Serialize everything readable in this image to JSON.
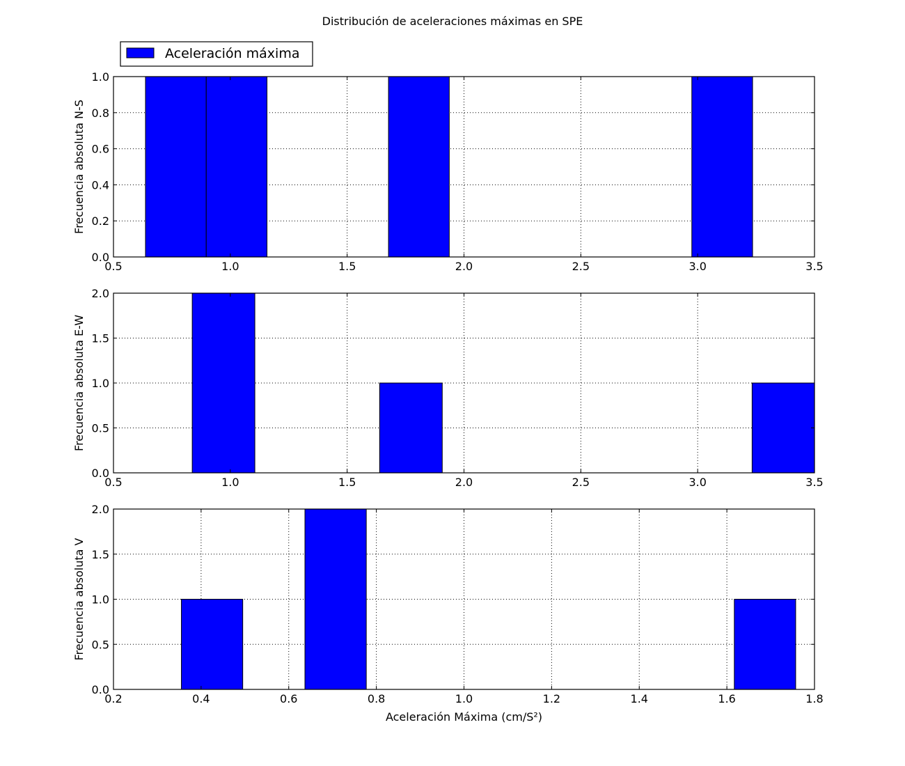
{
  "chart_data": {
    "type": "bar",
    "title": "Distribución de aceleraciones máximas en SPE",
    "legend": {
      "label": "Aceleración máxima",
      "placement": "upper-left",
      "color": "#0000ff"
    },
    "bar_color": "#0000ff",
    "grid": true,
    "panels": [
      {
        "id": "ns",
        "ylabel": "Frecuencia absoluta N-S",
        "xlim": [
          0.5,
          3.5
        ],
        "ylim": [
          0,
          1.0
        ],
        "xticks": [
          0.5,
          1.0,
          1.5,
          2.0,
          2.5,
          3.0,
          3.5
        ],
        "xtick_labels": [
          "0.5",
          "1.0",
          "1.5",
          "2.0",
          "2.5",
          "3.0",
          "3.5"
        ],
        "yticks": [
          0,
          0.2,
          0.4,
          0.6,
          0.8,
          1.0
        ],
        "ytick_labels": [
          "0.0",
          "0.2",
          "0.4",
          "0.6",
          "0.8",
          "1.0"
        ],
        "bars": [
          {
            "start": 0.637,
            "end": 0.897,
            "value": 1
          },
          {
            "start": 0.897,
            "end": 1.157,
            "value": 1
          },
          {
            "start": 1.677,
            "end": 1.937,
            "value": 1
          },
          {
            "start": 2.975,
            "end": 3.235,
            "value": 1
          }
        ]
      },
      {
        "id": "ew",
        "ylabel": "Frecuencia absoluta E-W",
        "xlim": [
          0.5,
          3.5
        ],
        "ylim": [
          0,
          2.0
        ],
        "xticks": [
          0.5,
          1.0,
          1.5,
          2.0,
          2.5,
          3.0,
          3.5
        ],
        "xtick_labels": [
          "0.5",
          "1.0",
          "1.5",
          "2.0",
          "2.5",
          "3.0",
          "3.5"
        ],
        "yticks": [
          0,
          0.5,
          1.0,
          1.5,
          2.0
        ],
        "ytick_labels": [
          "0.0",
          "0.5",
          "1.0",
          "1.5",
          "2.0"
        ],
        "bars": [
          {
            "start": 0.837,
            "end": 1.105,
            "value": 2
          },
          {
            "start": 1.639,
            "end": 1.907,
            "value": 1
          },
          {
            "start": 3.233,
            "end": 3.5,
            "value": 1
          }
        ]
      },
      {
        "id": "v",
        "ylabel": "Frecuencia absoluta V",
        "xlabel": "Aceleración Máxima (cm/S²)",
        "xlim": [
          0.2,
          1.8
        ],
        "ylim": [
          0,
          2.0
        ],
        "xticks": [
          0.2,
          0.4,
          0.6,
          0.8,
          1.0,
          1.2,
          1.4,
          1.6,
          1.8
        ],
        "xtick_labels": [
          "0.2",
          "0.4",
          "0.6",
          "0.8",
          "1.0",
          "1.2",
          "1.4",
          "1.6",
          "1.8"
        ],
        "yticks": [
          0,
          0.5,
          1.0,
          1.5,
          2.0
        ],
        "ytick_labels": [
          "0.0",
          "0.5",
          "1.0",
          "1.5",
          "2.0"
        ],
        "bars": [
          {
            "start": 0.355,
            "end": 0.495,
            "value": 1
          },
          {
            "start": 0.637,
            "end": 0.777,
            "value": 2
          },
          {
            "start": 1.617,
            "end": 1.757,
            "value": 1
          }
        ]
      }
    ]
  }
}
